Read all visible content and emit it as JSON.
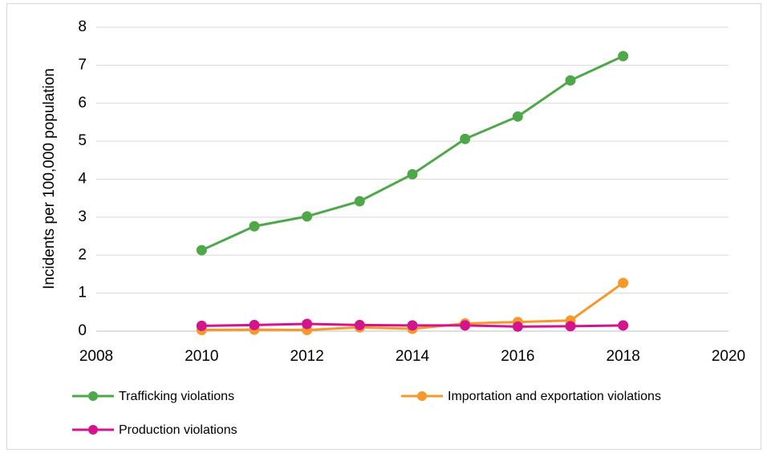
{
  "chart_data": {
    "type": "line",
    "y_label": "Incidents per 100,000 population",
    "x": [
      2010,
      2011,
      2012,
      2013,
      2014,
      2015,
      2016,
      2017,
      2018
    ],
    "series": [
      {
        "name": "Trafficking violations",
        "color": "#4ea84a",
        "values": [
          2.13,
          2.76,
          3.02,
          3.42,
          4.13,
          5.06,
          5.65,
          6.6,
          7.24
        ]
      },
      {
        "name": "Importation and exportation violations",
        "color": "#f7982a",
        "values": [
          0.03,
          0.04,
          0.03,
          0.1,
          0.06,
          0.2,
          0.24,
          0.28,
          1.27
        ]
      },
      {
        "name": "Production violations",
        "color": "#d4148c",
        "values": [
          0.14,
          0.16,
          0.19,
          0.16,
          0.15,
          0.15,
          0.12,
          0.13,
          0.15
        ]
      }
    ],
    "xlim": [
      2008,
      2020
    ],
    "xticks": [
      2008,
      2010,
      2012,
      2014,
      2016,
      2018,
      2020
    ],
    "ylim": [
      0,
      8
    ],
    "yticks": [
      0,
      1,
      2,
      3,
      4,
      5,
      6,
      7,
      8
    ],
    "grid": true,
    "legend": "bottom"
  }
}
